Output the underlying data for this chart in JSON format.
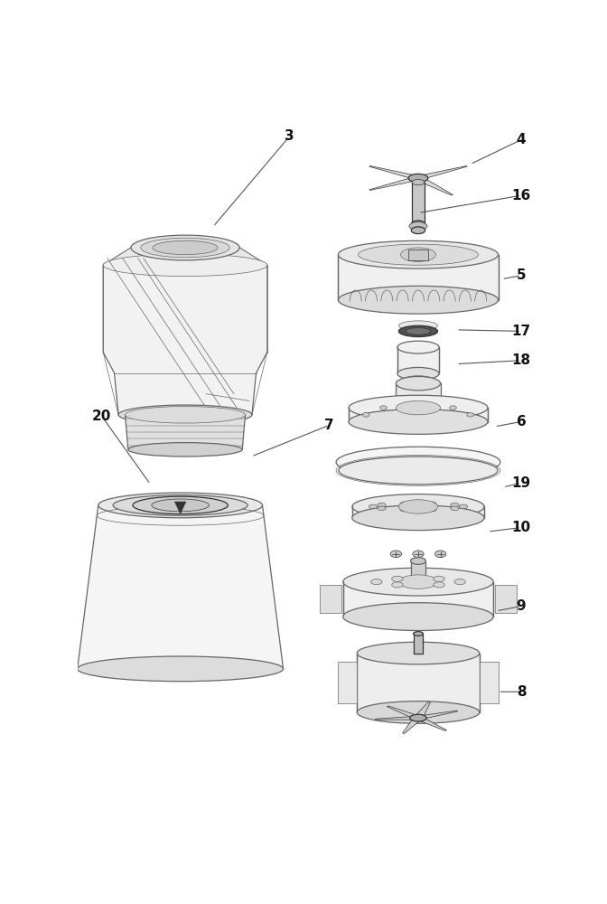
{
  "bg_color": "#ffffff",
  "lc": "#666666",
  "dc": "#333333",
  "fc_light": "#f0f0f0",
  "fc_mid": "#e0e0e0",
  "fc_dark": "#c8c8c8",
  "fc_shadow": "#b8b8b8",
  "figsize": [
    6.72,
    10.0
  ],
  "dpi": 100,
  "label_fs": 11
}
